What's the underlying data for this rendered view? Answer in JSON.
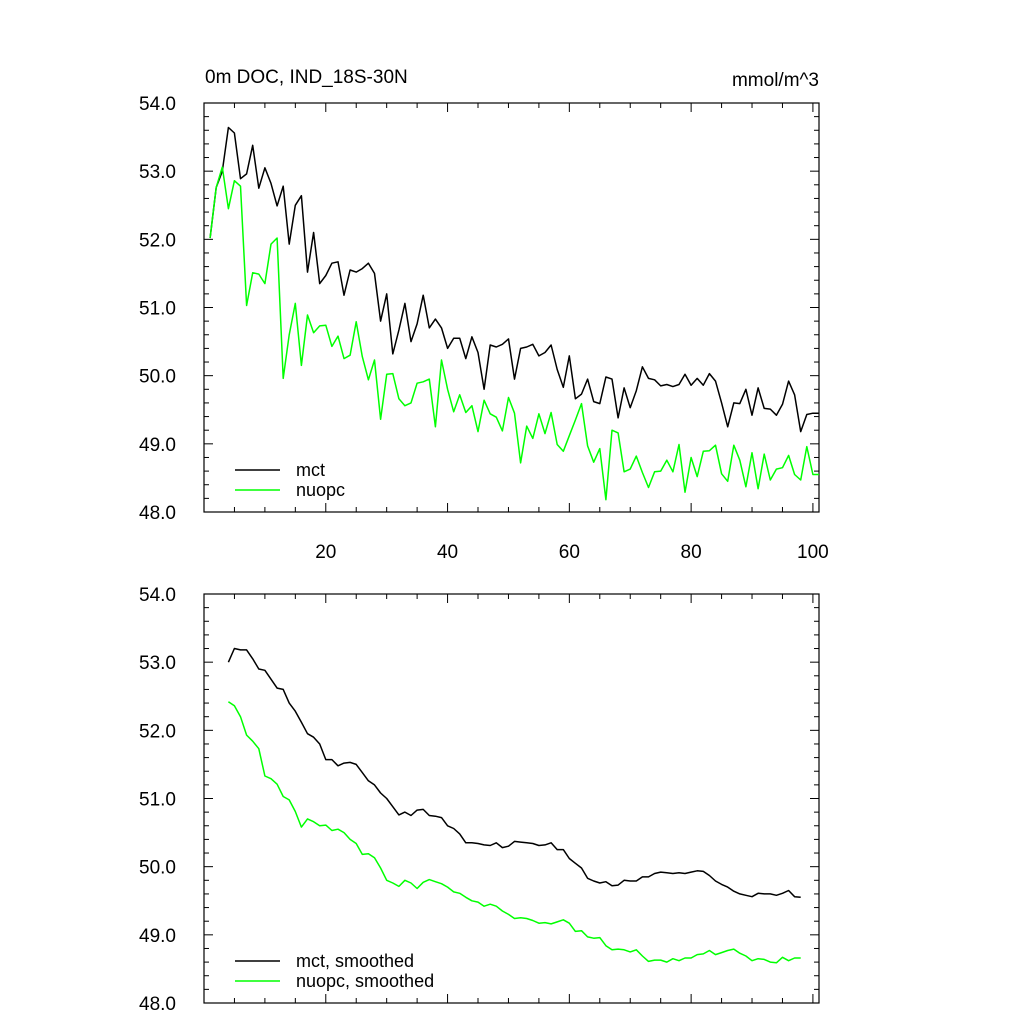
{
  "chart_data": [
    {
      "type": "line",
      "title": "0m DOC, IND_18S-30N",
      "units": "mmol/m^3",
      "xlim": [
        0,
        101
      ],
      "ylim": [
        48.0,
        54.0
      ],
      "x_ticks": [
        20,
        40,
        60,
        80,
        100
      ],
      "y_ticks": [
        "48.0",
        "49.0",
        "50.0",
        "51.0",
        "52.0",
        "53.0",
        "54.0"
      ],
      "legend_position": "bottom-left",
      "x": [
        1,
        2,
        3,
        4,
        5,
        6,
        7,
        8,
        9,
        10,
        11,
        12,
        13,
        14,
        15,
        16,
        17,
        18,
        19,
        20,
        21,
        22,
        23,
        24,
        25,
        26,
        27,
        28,
        29,
        30,
        31,
        32,
        33,
        34,
        35,
        36,
        37,
        38,
        39,
        40,
        41,
        42,
        43,
        44,
        45,
        46,
        47,
        48,
        49,
        50,
        51,
        52,
        53,
        54,
        55,
        56,
        57,
        58,
        59,
        60,
        61,
        62,
        63,
        64,
        65,
        66,
        67,
        68,
        69,
        70,
        71,
        72,
        73,
        74,
        75,
        76,
        77,
        78,
        79,
        80,
        81,
        82,
        83,
        84,
        85,
        86,
        87,
        88,
        89,
        90,
        91,
        92,
        93,
        94,
        95,
        96,
        97,
        98,
        99,
        100,
        101
      ],
      "series": [
        {
          "name": "mct",
          "color": "#000000",
          "values": [
            52.02,
            52.76,
            53.0,
            53.64,
            53.56,
            52.89,
            52.96,
            53.38,
            52.75,
            53.05,
            52.82,
            52.49,
            52.78,
            51.93,
            52.5,
            52.64,
            51.52,
            52.1,
            51.35,
            51.47,
            51.65,
            51.67,
            51.18,
            51.55,
            51.52,
            51.57,
            51.65,
            51.5,
            50.8,
            51.2,
            50.32,
            50.67,
            51.06,
            50.5,
            50.76,
            51.18,
            50.7,
            50.83,
            50.7,
            50.4,
            50.55,
            50.55,
            50.25,
            50.57,
            50.34,
            49.8,
            50.45,
            50.42,
            50.46,
            50.54,
            49.95,
            50.4,
            50.42,
            50.46,
            50.29,
            50.34,
            50.45,
            50.09,
            49.83,
            50.29,
            49.66,
            49.73,
            49.95,
            49.62,
            49.59,
            49.98,
            49.95,
            49.38,
            49.82,
            49.53,
            49.78,
            50.13,
            49.96,
            49.94,
            49.85,
            49.87,
            49.84,
            49.87,
            50.02,
            49.86,
            49.96,
            49.86,
            50.03,
            49.92,
            49.6,
            49.25,
            49.6,
            49.59,
            49.8,
            49.42,
            49.82,
            49.52,
            49.51,
            49.42,
            49.58,
            49.92,
            49.72,
            49.18,
            49.43,
            49.45,
            49.45
          ]
        },
        {
          "name": "nuopc",
          "color": "#00ff00",
          "values": [
            52.02,
            52.76,
            53.06,
            52.45,
            52.86,
            52.78,
            51.03,
            51.51,
            51.49,
            51.35,
            51.93,
            52.02,
            49.96,
            50.6,
            51.06,
            50.15,
            50.89,
            50.63,
            50.73,
            50.74,
            50.43,
            50.58,
            50.25,
            50.3,
            50.79,
            50.28,
            49.94,
            50.23,
            49.36,
            50.02,
            50.03,
            49.66,
            49.56,
            49.6,
            49.89,
            49.91,
            49.95,
            49.25,
            50.23,
            49.8,
            49.47,
            49.72,
            49.46,
            49.56,
            49.18,
            49.64,
            49.44,
            49.39,
            49.19,
            49.68,
            49.45,
            48.72,
            49.26,
            49.08,
            49.44,
            49.15,
            49.46,
            48.99,
            48.89,
            49.12,
            49.35,
            49.59,
            48.97,
            48.73,
            48.93,
            48.18,
            49.2,
            49.16,
            48.59,
            48.63,
            48.82,
            48.58,
            48.36,
            48.59,
            48.6,
            48.76,
            48.59,
            48.99,
            48.29,
            48.8,
            48.52,
            48.89,
            48.9,
            48.98,
            48.56,
            48.45,
            48.98,
            48.76,
            48.37,
            48.87,
            48.34,
            48.85,
            48.47,
            48.63,
            48.65,
            48.83,
            48.55,
            48.47,
            48.96,
            48.55,
            48.55
          ]
        }
      ]
    },
    {
      "type": "line",
      "xlim": [
        0,
        101
      ],
      "ylim": [
        48.0,
        54.0
      ],
      "y_ticks": [
        "48.0",
        "49.0",
        "50.0",
        "51.0",
        "52.0",
        "53.0",
        "54.0"
      ],
      "legend_position": "bottom-left",
      "x": [
        4,
        5,
        6,
        7,
        8,
        9,
        10,
        11,
        12,
        13,
        14,
        15,
        16,
        17,
        18,
        19,
        20,
        21,
        22,
        23,
        24,
        25,
        26,
        27,
        28,
        29,
        30,
        31,
        32,
        33,
        34,
        35,
        36,
        37,
        38,
        39,
        40,
        41,
        42,
        43,
        44,
        45,
        46,
        47,
        48,
        49,
        50,
        51,
        52,
        53,
        54,
        55,
        56,
        57,
        58,
        59,
        60,
        61,
        62,
        63,
        64,
        65,
        66,
        67,
        68,
        69,
        70,
        71,
        72,
        73,
        74,
        75,
        76,
        77,
        78,
        79,
        80,
        81,
        82,
        83,
        84,
        85,
        86,
        87,
        88,
        89,
        90,
        91,
        92,
        93,
        94,
        95,
        96,
        97,
        98
      ],
      "series": [
        {
          "name": "mct, smoothed",
          "color": "#000000",
          "values": [
            53.0,
            53.2,
            53.18,
            53.18,
            53.05,
            52.9,
            52.88,
            52.75,
            52.62,
            52.6,
            52.4,
            52.28,
            52.12,
            51.95,
            51.9,
            51.8,
            51.57,
            51.57,
            51.48,
            51.52,
            51.53,
            51.5,
            51.38,
            51.26,
            51.2,
            51.08,
            51.0,
            50.88,
            50.76,
            50.8,
            50.75,
            50.83,
            50.84,
            50.75,
            50.74,
            50.72,
            50.6,
            50.56,
            50.48,
            50.35,
            50.35,
            50.34,
            50.32,
            50.31,
            50.35,
            50.28,
            50.3,
            50.37,
            50.36,
            50.35,
            50.34,
            50.31,
            50.32,
            50.35,
            50.25,
            50.25,
            50.12,
            50.05,
            49.98,
            49.83,
            49.79,
            49.76,
            49.78,
            49.72,
            49.73,
            49.8,
            49.79,
            49.79,
            49.85,
            49.85,
            49.9,
            49.92,
            49.91,
            49.9,
            49.91,
            49.9,
            49.92,
            49.94,
            49.93,
            49.87,
            49.79,
            49.74,
            49.7,
            49.64,
            49.6,
            49.58,
            49.56,
            49.61,
            49.6,
            49.6,
            49.58,
            49.61,
            49.65,
            49.56,
            49.55
          ]
        },
        {
          "name": "nuopc, smoothed",
          "color": "#00ff00",
          "values": [
            52.42,
            52.36,
            52.2,
            51.93,
            51.84,
            51.73,
            51.33,
            51.29,
            51.21,
            51.03,
            50.98,
            50.81,
            50.58,
            50.7,
            50.66,
            50.6,
            50.61,
            50.53,
            50.55,
            50.5,
            50.4,
            50.34,
            50.18,
            50.19,
            50.13,
            49.98,
            49.8,
            49.76,
            49.71,
            49.8,
            49.76,
            49.68,
            49.77,
            49.81,
            49.78,
            49.75,
            49.7,
            49.63,
            49.61,
            49.55,
            49.5,
            49.48,
            49.42,
            49.45,
            49.42,
            49.35,
            49.3,
            49.24,
            49.25,
            49.24,
            49.21,
            49.17,
            49.18,
            49.16,
            49.19,
            49.22,
            49.17,
            49.05,
            49.06,
            48.97,
            48.95,
            48.96,
            48.84,
            48.78,
            48.79,
            48.78,
            48.75,
            48.78,
            48.69,
            48.61,
            48.63,
            48.63,
            48.6,
            48.65,
            48.62,
            48.66,
            48.66,
            48.71,
            48.72,
            48.77,
            48.71,
            48.74,
            48.77,
            48.79,
            48.73,
            48.69,
            48.62,
            48.65,
            48.64,
            48.6,
            48.59,
            48.67,
            48.62,
            48.66,
            48.66
          ]
        }
      ]
    }
  ]
}
